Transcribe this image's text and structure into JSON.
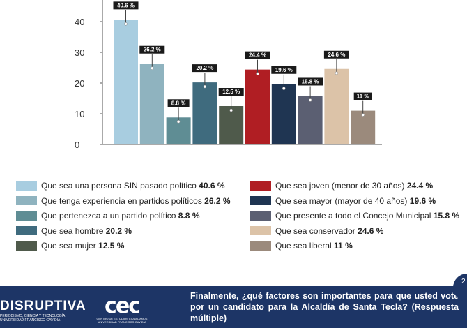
{
  "chart_data": {
    "type": "bar",
    "categories": [
      "Que sea una persona SIN pasado político",
      "Que tenga experiencia en partidos políticos",
      "Que pertenezca a un partido político",
      "Que sea hombre",
      "Que sea mujer",
      "Que sea joven (menor de 30 años)",
      "Que sea mayor (mayor de 40 años)",
      "Que presente a todo el Concejo Municipal",
      "Que sea conservador",
      "Que sea liberal"
    ],
    "values": [
      40.6,
      26.2,
      8.8,
      20.2,
      12.5,
      24.4,
      19.6,
      15.8,
      24.6,
      11
    ],
    "value_labels": [
      "40.6 %",
      "26.2 %",
      "8.8 %",
      "20.2 %",
      "12.5 %",
      "24.4 %",
      "19.6 %",
      "15.8 %",
      "24.6 %",
      "11 %"
    ],
    "legend_values": [
      "40.6 %",
      "26.2 %",
      "8.8 %",
      "20.2 %",
      "12.5 %",
      "24.4 %",
      "19.6 %",
      "15.8 %",
      "24.6 %",
      "11 %"
    ],
    "colors": [
      "#a8cde0",
      "#8fb3bf",
      "#5f8d94",
      "#3f6b7e",
      "#4f5a4b",
      "#b01e23",
      "#1f3552",
      "#5b5f72",
      "#dcc3a8",
      "#9b8a7c"
    ],
    "yticks": [
      "0",
      "10",
      "20",
      "30",
      "40"
    ],
    "ylim": [
      0,
      46
    ],
    "legend_placement": "bottom",
    "grid": false
  },
  "footer": {
    "brand_left": "DISRUPTIVA",
    "brand_left_sub1": "PERIODISMO, CIENCIA Y TECNOLOGÍA",
    "brand_left_sub2": "UNIVERSIDAD FRANCISCO GAVIDIA",
    "brand_center": "cec",
    "brand_center_sub1": "CENTRO DE ESTUDIOS CIUDADANOS",
    "brand_center_sub2": "UNIVERSIDAD FRANCISCO GAVIDIA",
    "question": "Finalmente, ¿qué factores son importantes para que usted vote por un candidato para la Alcaldía de Santa Tecla? (Respuesta múltiple)",
    "corner_text": "2"
  }
}
